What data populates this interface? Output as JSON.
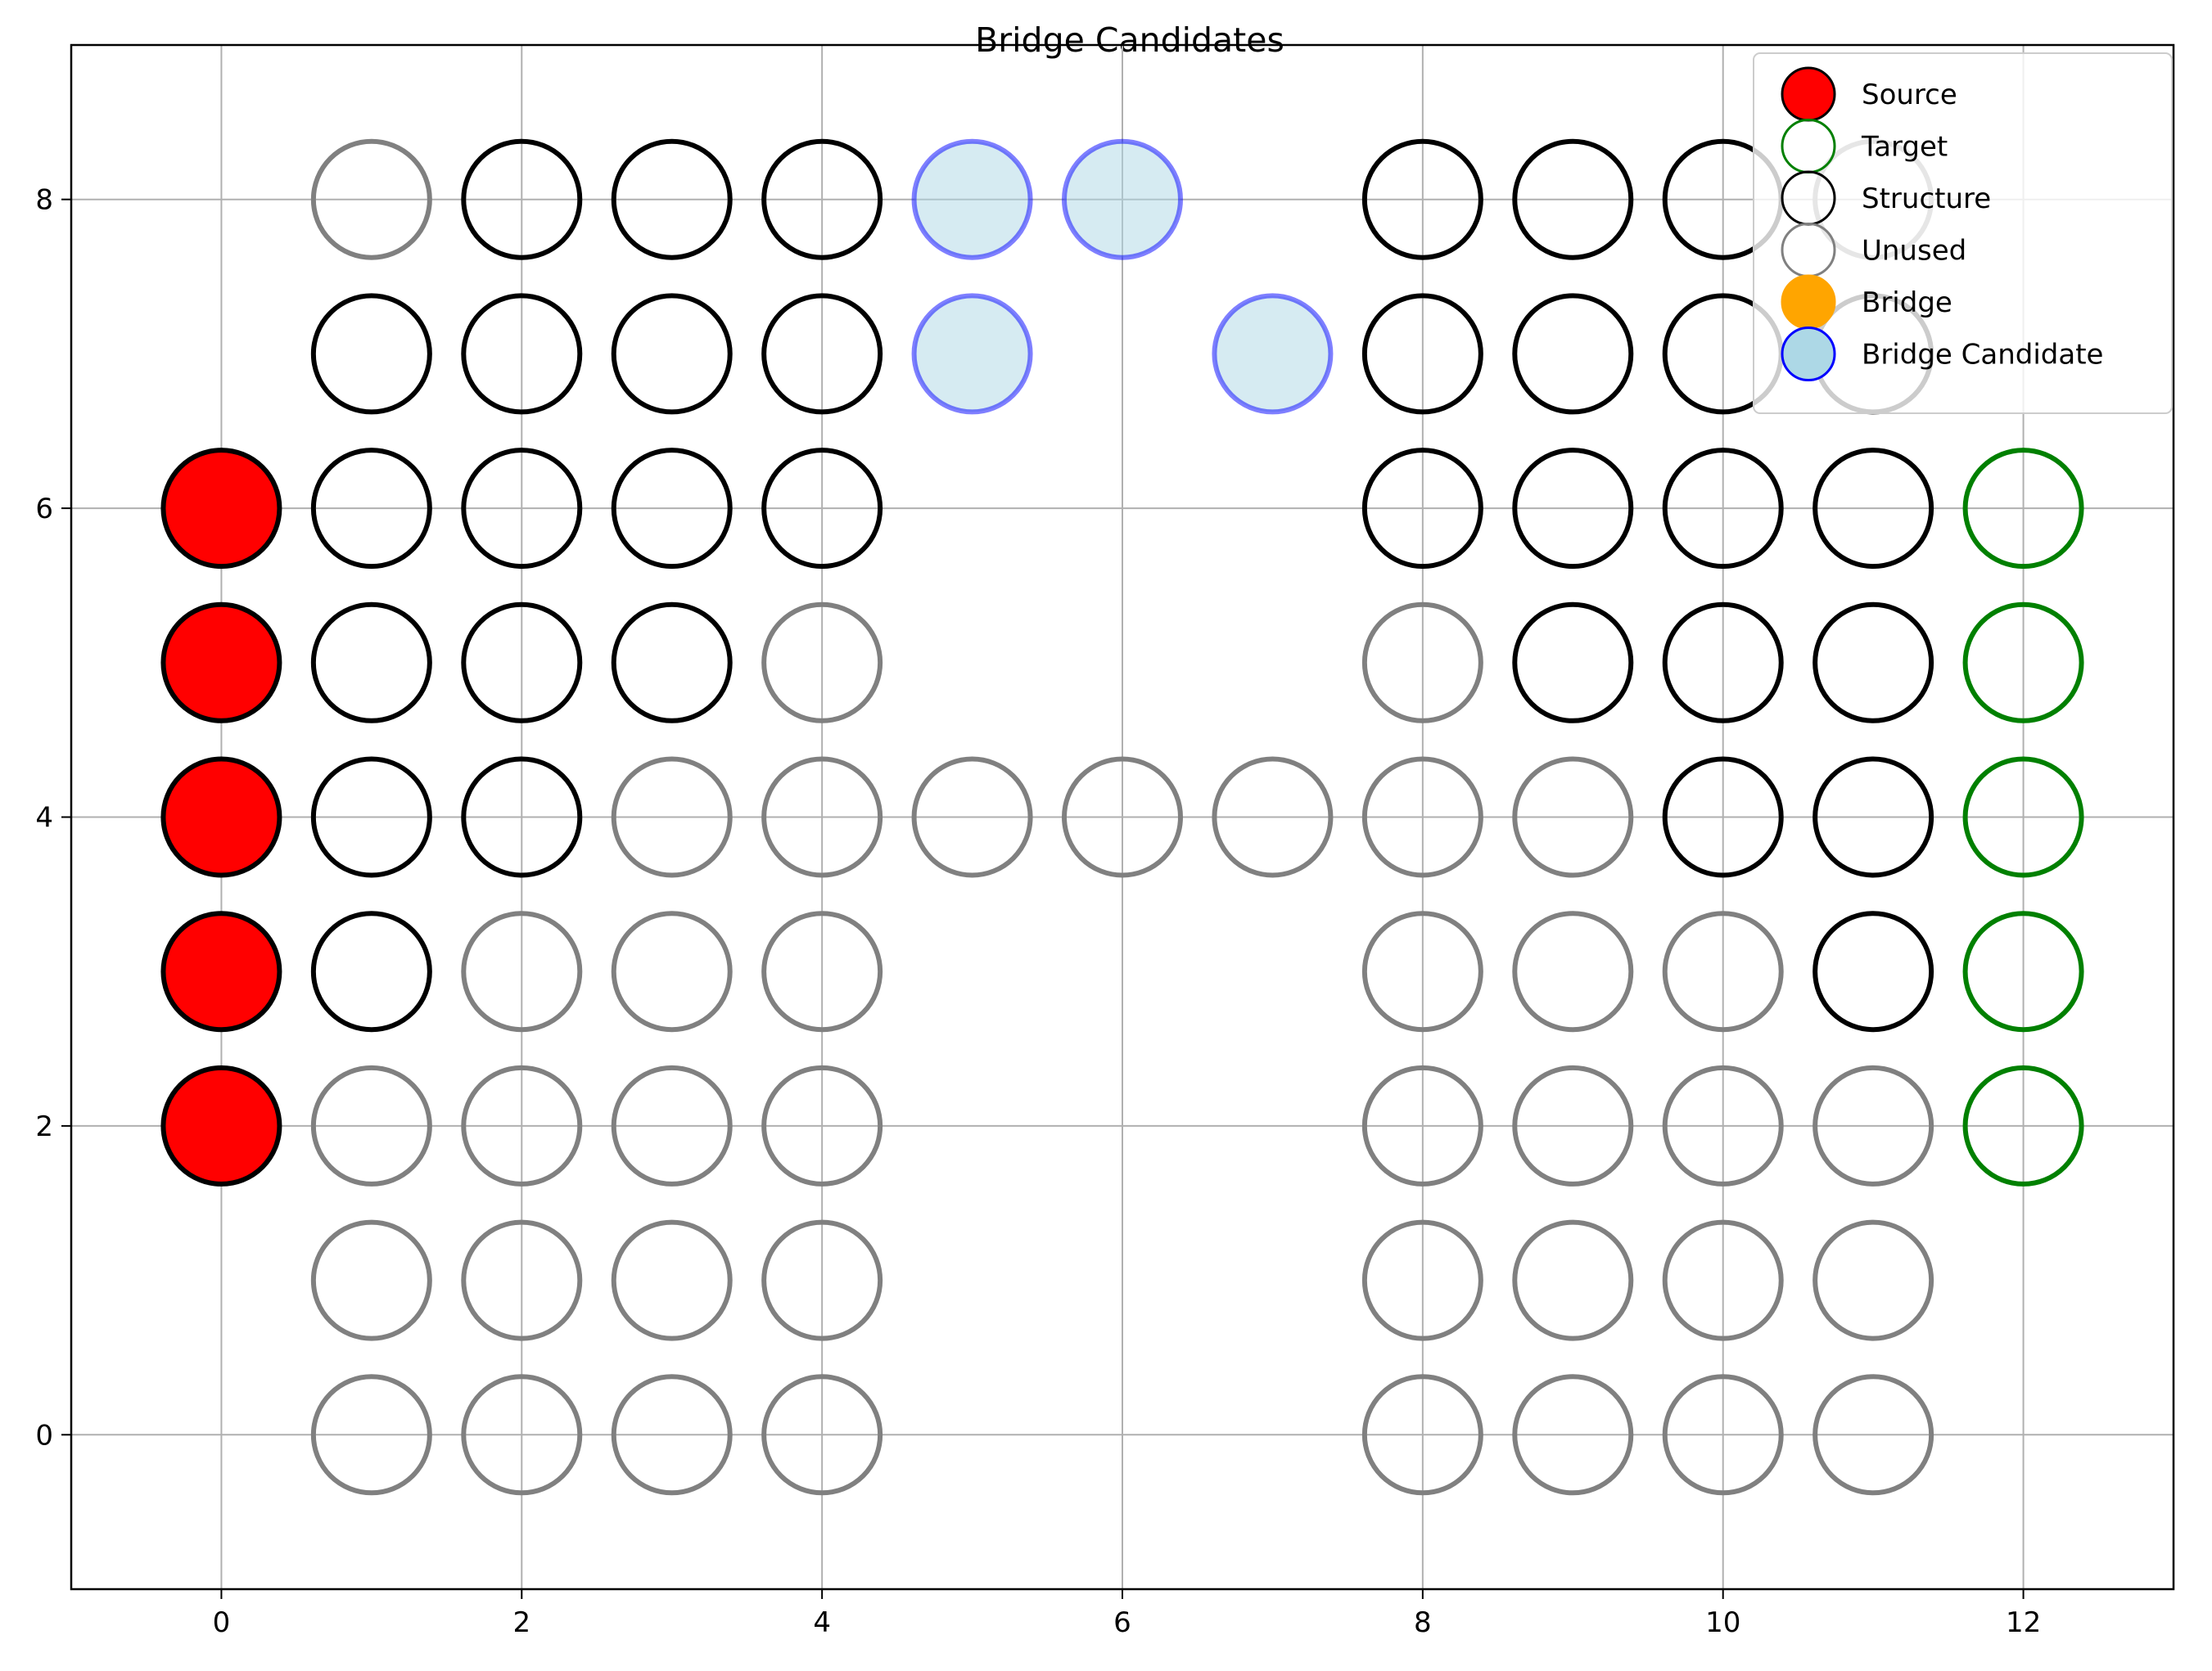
{
  "chart_data": {
    "type": "scatter",
    "title": "Bridge Candidates",
    "xlabel": "",
    "ylabel": "",
    "xlim": [
      -1,
      13
    ],
    "ylim": [
      -1,
      9
    ],
    "xticks": [
      0,
      2,
      4,
      6,
      8,
      10,
      12
    ],
    "yticks": [
      0,
      2,
      4,
      6,
      8
    ],
    "grid": true,
    "legend_position": "top-right",
    "categories": [
      {
        "key": "source",
        "label": "Source",
        "fill": "#ff0000",
        "stroke": "#000000"
      },
      {
        "key": "target",
        "label": "Target",
        "fill": "none",
        "stroke": "#008000"
      },
      {
        "key": "structure",
        "label": "Structure",
        "fill": "none",
        "stroke": "#000000"
      },
      {
        "key": "unused",
        "label": "Unused",
        "fill": "none",
        "stroke": "#808080"
      },
      {
        "key": "bridge",
        "label": "Bridge",
        "fill": "#ffa500",
        "stroke": "#ffa500"
      },
      {
        "key": "candidate",
        "label": "Bridge Candidate",
        "fill": "#add8e6",
        "stroke": "#0000ff"
      }
    ],
    "points": {
      "source": [
        [
          0,
          2
        ],
        [
          0,
          3
        ],
        [
          0,
          4
        ],
        [
          0,
          5
        ],
        [
          0,
          6
        ]
      ],
      "target": [
        [
          12,
          2
        ],
        [
          12,
          3
        ],
        [
          12,
          4
        ],
        [
          12,
          5
        ],
        [
          12,
          6
        ]
      ],
      "structure": [
        [
          2,
          8
        ],
        [
          3,
          8
        ],
        [
          4,
          8
        ],
        [
          8,
          8
        ],
        [
          9,
          8
        ],
        [
          10,
          8
        ],
        [
          1,
          7
        ],
        [
          2,
          7
        ],
        [
          3,
          7
        ],
        [
          4,
          7
        ],
        [
          8,
          7
        ],
        [
          9,
          7
        ],
        [
          10,
          7
        ],
        [
          11,
          7
        ],
        [
          1,
          6
        ],
        [
          2,
          6
        ],
        [
          3,
          6
        ],
        [
          4,
          6
        ],
        [
          8,
          6
        ],
        [
          9,
          6
        ],
        [
          10,
          6
        ],
        [
          11,
          6
        ],
        [
          1,
          5
        ],
        [
          2,
          5
        ],
        [
          3,
          5
        ],
        [
          9,
          5
        ],
        [
          10,
          5
        ],
        [
          11,
          5
        ],
        [
          1,
          4
        ],
        [
          2,
          4
        ],
        [
          10,
          4
        ],
        [
          11,
          4
        ],
        [
          1,
          3
        ],
        [
          11,
          3
        ]
      ],
      "unused": [
        [
          1,
          8
        ],
        [
          11,
          8
        ],
        [
          4,
          5
        ],
        [
          8,
          5
        ],
        [
          3,
          4
        ],
        [
          4,
          4
        ],
        [
          5,
          4
        ],
        [
          6,
          4
        ],
        [
          7,
          4
        ],
        [
          8,
          4
        ],
        [
          9,
          4
        ],
        [
          2,
          3
        ],
        [
          3,
          3
        ],
        [
          4,
          3
        ],
        [
          8,
          3
        ],
        [
          9,
          3
        ],
        [
          10,
          3
        ],
        [
          1,
          2
        ],
        [
          2,
          2
        ],
        [
          3,
          2
        ],
        [
          4,
          2
        ],
        [
          8,
          2
        ],
        [
          9,
          2
        ],
        [
          10,
          2
        ],
        [
          11,
          2
        ],
        [
          1,
          1
        ],
        [
          2,
          1
        ],
        [
          3,
          1
        ],
        [
          4,
          1
        ],
        [
          8,
          1
        ],
        [
          9,
          1
        ],
        [
          10,
          1
        ],
        [
          11,
          1
        ],
        [
          1,
          0
        ],
        [
          2,
          0
        ],
        [
          3,
          0
        ],
        [
          4,
          0
        ],
        [
          8,
          0
        ],
        [
          9,
          0
        ],
        [
          10,
          0
        ],
        [
          11,
          0
        ]
      ],
      "bridge": [],
      "candidate": [
        [
          5,
          8
        ],
        [
          6,
          8
        ],
        [
          5,
          7
        ],
        [
          7,
          7
        ]
      ]
    }
  }
}
